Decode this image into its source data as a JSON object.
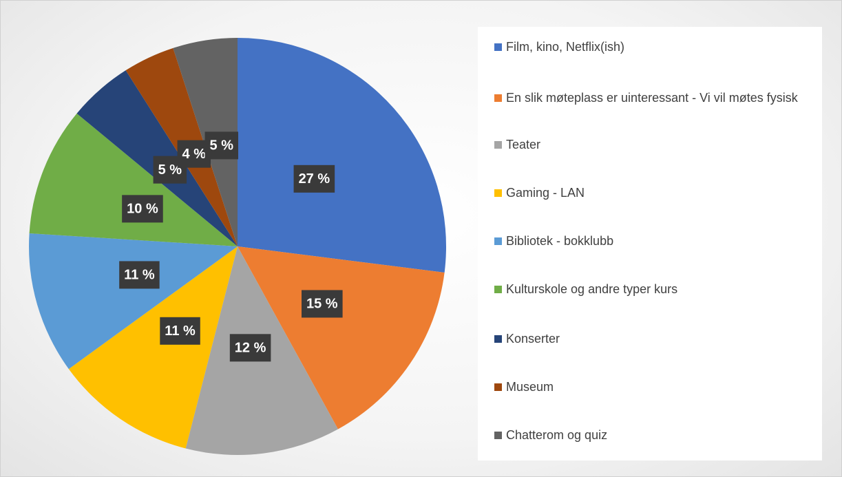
{
  "chart_data": {
    "type": "pie",
    "categories": [
      "Film, kino, Netflix(ish)",
      "En slik møteplass er uinteressant - Vi vil møtes fysisk",
      "Teater",
      "Gaming -  LAN",
      "Bibliotek - bokklubb",
      "Kulturskole og andre typer kurs",
      "Konserter",
      "Museum",
      "Chatterom og quiz"
    ],
    "values": [
      27,
      15,
      12,
      11,
      11,
      10,
      5,
      4,
      5
    ],
    "value_labels": [
      "27 %",
      "15 %",
      "12 %",
      "11 %",
      "11 %",
      "10 %",
      "5 %",
      "4 %",
      "5 %"
    ],
    "colors": [
      "#4472c4",
      "#ed7d31",
      "#a5a5a5",
      "#ffc000",
      "#5b9bd5",
      "#70ad47",
      "#264478",
      "#9e480e",
      "#636363"
    ],
    "legend": "right"
  }
}
